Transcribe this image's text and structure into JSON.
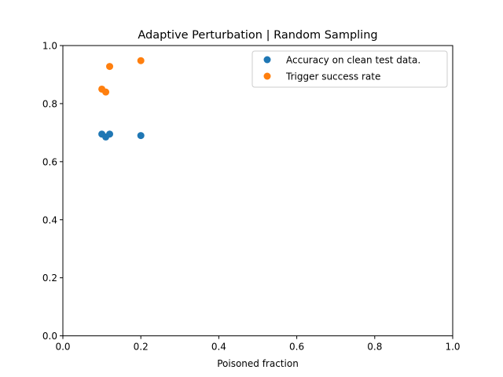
{
  "chart_data": {
    "type": "scatter",
    "title": "Adaptive Perturbation | Random Sampling",
    "xlabel": "Poisoned fraction",
    "ylabel": "",
    "xlim": [
      0.0,
      1.0
    ],
    "ylim": [
      0.0,
      1.0
    ],
    "xticks": [
      "0.0",
      "0.2",
      "0.4",
      "0.6",
      "0.8",
      "1.0"
    ],
    "yticks": [
      "0.0",
      "0.2",
      "0.4",
      "0.6",
      "0.8",
      "1.0"
    ],
    "grid": false,
    "legend_position": "top-right",
    "series": [
      {
        "name": "Accuracy on clean test data.",
        "color": "#1f77b4",
        "x": [
          0.1,
          0.11,
          0.12,
          0.2
        ],
        "y": [
          0.695,
          0.685,
          0.695,
          0.69
        ]
      },
      {
        "name": "Trigger success rate",
        "color": "#ff7f0e",
        "x": [
          0.1,
          0.11,
          0.12,
          0.2
        ],
        "y": [
          0.85,
          0.84,
          0.928,
          0.948
        ]
      }
    ]
  }
}
